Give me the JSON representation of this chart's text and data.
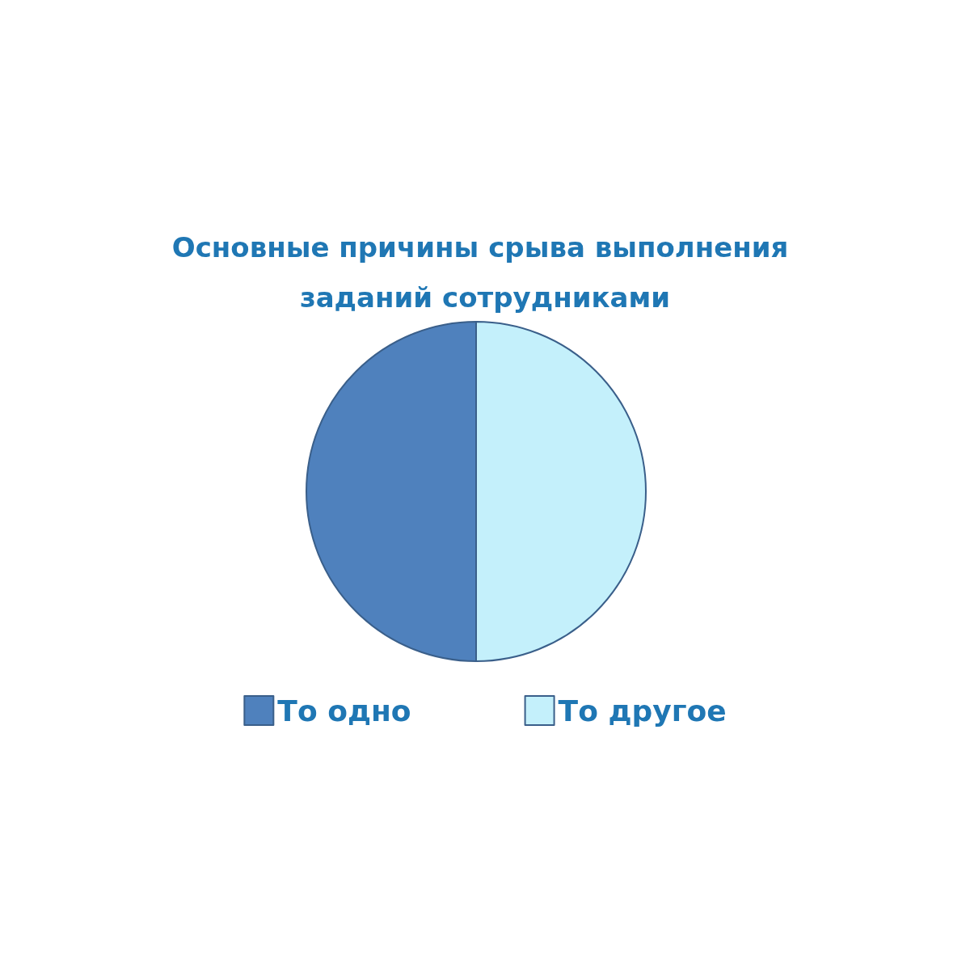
{
  "chart_data": {
    "type": "pie",
    "title": "Основные причины срыва выполнения заданий сотрудниками",
    "categories": [
      "То одно",
      "То другое"
    ],
    "values": [
      50,
      50
    ],
    "colors": [
      "#4f81bd",
      "#c4f0fb"
    ],
    "legend": "bottom"
  }
}
